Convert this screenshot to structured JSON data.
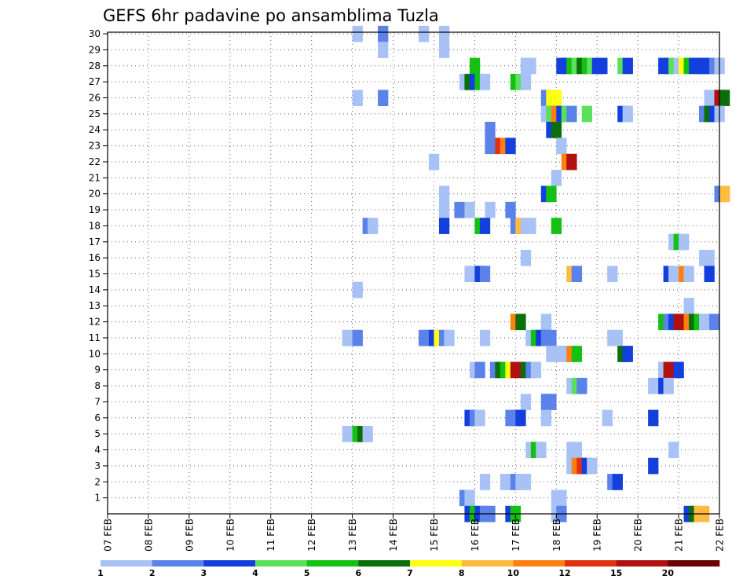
{
  "chart_data": {
    "type": "heatmap",
    "title": "GEFS 6hr padavine po ansamblima Tuzla",
    "x_tick_labels": [
      "07 FEB",
      "08 FEB",
      "09 FEB",
      "10 FEB",
      "11 FEB",
      "12 FEB",
      "13 FEB",
      "14 FEB",
      "15 FEB",
      "16 FEB",
      "17 FEB",
      "18 FEB",
      "19 FEB",
      "20 FEB",
      "21 FEB",
      "22 FEB"
    ],
    "y_tick_labels": [
      "1",
      "2",
      "3",
      "4",
      "5",
      "6",
      "7",
      "8",
      "9",
      "10",
      "11",
      "12",
      "13",
      "14",
      "15",
      "16",
      "17",
      "18",
      "19",
      "20",
      "21",
      "22",
      "23",
      "24",
      "25",
      "26",
      "27",
      "28",
      "29",
      "30"
    ],
    "x_range_days": [
      0,
      15
    ],
    "y_range": [
      0,
      30
    ],
    "time_step_hours": 6,
    "grid": true,
    "colorbar": {
      "placement": "bottom",
      "labels": [
        "1",
        "2",
        "3",
        "4",
        "5",
        "6",
        "7",
        "8",
        "10",
        "12",
        "15",
        "20"
      ],
      "colors": [
        "#a9c2f5",
        "#5b82e8",
        "#1340dc",
        "#5ae05a",
        "#13c013",
        "#0a6e0a",
        "#ffff10",
        "#ffbb40",
        "#ff8010",
        "#e03010",
        "#b01010",
        "#6a0000"
      ]
    },
    "cells": [
      [
        12,
        30,
        1
      ],
      [
        13.25,
        30,
        2
      ],
      [
        15.25,
        30,
        1
      ],
      [
        16.25,
        30,
        1
      ],
      [
        13.25,
        29,
        1
      ],
      [
        16.25,
        29,
        1
      ],
      [
        17.75,
        28,
        5
      ],
      [
        20.25,
        28,
        1
      ],
      [
        20.5,
        28,
        1
      ],
      [
        22,
        28,
        3
      ],
      [
        22.25,
        28,
        3
      ],
      [
        22.5,
        28,
        5
      ],
      [
        22.75,
        28,
        4
      ],
      [
        23,
        28,
        6
      ],
      [
        23.25,
        28,
        5
      ],
      [
        23.5,
        28,
        4
      ],
      [
        23.75,
        28,
        3
      ],
      [
        24,
        28,
        3
      ],
      [
        25,
        28,
        4
      ],
      [
        25.25,
        28,
        3
      ],
      [
        27,
        28,
        3
      ],
      [
        27.25,
        28,
        3
      ],
      [
        27.5,
        28,
        4
      ],
      [
        27.75,
        28,
        1
      ],
      [
        28,
        28,
        7
      ],
      [
        28.25,
        28,
        5
      ],
      [
        28.5,
        28,
        3
      ],
      [
        28.75,
        28,
        3
      ],
      [
        29,
        28,
        3
      ],
      [
        29.25,
        28,
        3
      ],
      [
        29.5,
        28,
        2
      ],
      [
        29.75,
        28,
        1
      ],
      [
        17.25,
        27,
        1
      ],
      [
        17.5,
        27,
        6
      ],
      [
        17.75,
        27,
        3
      ],
      [
        18,
        27,
        5
      ],
      [
        18.25,
        27,
        1
      ],
      [
        19.75,
        27,
        5
      ],
      [
        20,
        27,
        4
      ],
      [
        20.25,
        27,
        1
      ],
      [
        12,
        26,
        1
      ],
      [
        13.25,
        26,
        2
      ],
      [
        21.25,
        26,
        2
      ],
      [
        21.5,
        26,
        7
      ],
      [
        21.75,
        26,
        7
      ],
      [
        29.25,
        26,
        1
      ],
      [
        29.75,
        26,
        11
      ],
      [
        30,
        26,
        6
      ],
      [
        21.25,
        25,
        1
      ],
      [
        21.5,
        25,
        4
      ],
      [
        21.75,
        25,
        9
      ],
      [
        22,
        25,
        3
      ],
      [
        22.25,
        25,
        4
      ],
      [
        22.5,
        25,
        2
      ],
      [
        23.25,
        25,
        4
      ],
      [
        25,
        25,
        3
      ],
      [
        25.25,
        25,
        1
      ],
      [
        29,
        25,
        2
      ],
      [
        29.25,
        25,
        6
      ],
      [
        29.5,
        25,
        3
      ],
      [
        29.75,
        25,
        1
      ],
      [
        18.5,
        24,
        2
      ],
      [
        21.5,
        24,
        3
      ],
      [
        21.75,
        24,
        6
      ],
      [
        18.5,
        23,
        2
      ],
      [
        18.75,
        23,
        2
      ],
      [
        19,
        23,
        10
      ],
      [
        19.25,
        23,
        9
      ],
      [
        19.5,
        23,
        3
      ],
      [
        22,
        23,
        1
      ],
      [
        15.75,
        22,
        1
      ],
      [
        22.25,
        22,
        9
      ],
      [
        22.5,
        22,
        11
      ],
      [
        21.75,
        21,
        1
      ],
      [
        16.25,
        20,
        1
      ],
      [
        21.25,
        20,
        3
      ],
      [
        21.5,
        20,
        5
      ],
      [
        29.75,
        20,
        2
      ],
      [
        30,
        20,
        8
      ],
      [
        16.25,
        19,
        1
      ],
      [
        17,
        19,
        2
      ],
      [
        17.5,
        19,
        1
      ],
      [
        18.5,
        19,
        1
      ],
      [
        19.5,
        19,
        2
      ],
      [
        12.5,
        18,
        2
      ],
      [
        12.75,
        18,
        1
      ],
      [
        16.25,
        18,
        3
      ],
      [
        18,
        18,
        5
      ],
      [
        18.25,
        18,
        3
      ],
      [
        19.75,
        18,
        2
      ],
      [
        20,
        18,
        8
      ],
      [
        20.25,
        18,
        1
      ],
      [
        20.5,
        18,
        1
      ],
      [
        21.75,
        18,
        5
      ],
      [
        27.5,
        17,
        1
      ],
      [
        27.75,
        17,
        5
      ],
      [
        28,
        17,
        1
      ],
      [
        20.25,
        16,
        1
      ],
      [
        29,
        16,
        1
      ],
      [
        29.25,
        16,
        1
      ],
      [
        17.5,
        15,
        1
      ],
      [
        17.75,
        15,
        1
      ],
      [
        18,
        15,
        3
      ],
      [
        18.25,
        15,
        2
      ],
      [
        22.5,
        15,
        8
      ],
      [
        22.75,
        15,
        2
      ],
      [
        24.5,
        15,
        1
      ],
      [
        27.25,
        15,
        3
      ],
      [
        27.5,
        15,
        1
      ],
      [
        28,
        15,
        9
      ],
      [
        28.25,
        15,
        1
      ],
      [
        29.25,
        15,
        3
      ],
      [
        12,
        14,
        1
      ],
      [
        28.25,
        13,
        1
      ],
      [
        19.75,
        12,
        9
      ],
      [
        20,
        12,
        6
      ],
      [
        21.25,
        12,
        1
      ],
      [
        27,
        12,
        5
      ],
      [
        27.25,
        12,
        2
      ],
      [
        27.5,
        12,
        3
      ],
      [
        27.75,
        12,
        11
      ],
      [
        28,
        12,
        11
      ],
      [
        28.25,
        12,
        9
      ],
      [
        28.5,
        12,
        6
      ],
      [
        28.75,
        12,
        5
      ],
      [
        29,
        12,
        1
      ],
      [
        29.25,
        12,
        1
      ],
      [
        29.5,
        12,
        2
      ],
      [
        11.5,
        11,
        1
      ],
      [
        11.75,
        11,
        1
      ],
      [
        12,
        11,
        2
      ],
      [
        15.25,
        11,
        2
      ],
      [
        15.5,
        11,
        2
      ],
      [
        15.75,
        11,
        3
      ],
      [
        16,
        11,
        7
      ],
      [
        16.25,
        11,
        2
      ],
      [
        16.5,
        11,
        1
      ],
      [
        18.25,
        11,
        1
      ],
      [
        20.5,
        11,
        1
      ],
      [
        20.75,
        11,
        5
      ],
      [
        21,
        11,
        3
      ],
      [
        21.25,
        11,
        2
      ],
      [
        21.5,
        11,
        2
      ],
      [
        24.5,
        11,
        1
      ],
      [
        24.75,
        11,
        1
      ],
      [
        21.5,
        10,
        1
      ],
      [
        21.75,
        10,
        1
      ],
      [
        22,
        10,
        1
      ],
      [
        22.25,
        10,
        1
      ],
      [
        22.5,
        10,
        9
      ],
      [
        22.75,
        10,
        5
      ],
      [
        25,
        10,
        6
      ],
      [
        25.25,
        10,
        3
      ],
      [
        17.75,
        9,
        1
      ],
      [
        18,
        9,
        2
      ],
      [
        18.75,
        9,
        2
      ],
      [
        19,
        9,
        6
      ],
      [
        19.25,
        9,
        5
      ],
      [
        19.5,
        9,
        7
      ],
      [
        19.75,
        9,
        11
      ],
      [
        20,
        9,
        11
      ],
      [
        20.25,
        9,
        6
      ],
      [
        20.5,
        9,
        2
      ],
      [
        20.75,
        9,
        1
      ],
      [
        27,
        9,
        1
      ],
      [
        27.25,
        9,
        11
      ],
      [
        27.5,
        9,
        11
      ],
      [
        27.75,
        9,
        3
      ],
      [
        22.5,
        8,
        1
      ],
      [
        22.75,
        8,
        4
      ],
      [
        23,
        8,
        2
      ],
      [
        26.5,
        8,
        1
      ],
      [
        27,
        8,
        3
      ],
      [
        27.25,
        8,
        1
      ],
      [
        20.25,
        7,
        1
      ],
      [
        21.25,
        7,
        2
      ],
      [
        21.5,
        7,
        2
      ],
      [
        17.5,
        6,
        3
      ],
      [
        17.75,
        6,
        2
      ],
      [
        18,
        6,
        1
      ],
      [
        19.5,
        6,
        2
      ],
      [
        19.75,
        6,
        2
      ],
      [
        20,
        6,
        3
      ],
      [
        21.25,
        6,
        1
      ],
      [
        24.25,
        6,
        1
      ],
      [
        26.5,
        6,
        3
      ],
      [
        11.5,
        5,
        1
      ],
      [
        12,
        5,
        5
      ],
      [
        12.25,
        5,
        6
      ],
      [
        12.5,
        5,
        1
      ],
      [
        20.5,
        4,
        1
      ],
      [
        20.75,
        4,
        5
      ],
      [
        21,
        4,
        1
      ],
      [
        22.5,
        4,
        1
      ],
      [
        22.75,
        4,
        1
      ],
      [
        27.5,
        4,
        1
      ],
      [
        22.5,
        3,
        1
      ],
      [
        22.75,
        3,
        9
      ],
      [
        23,
        3,
        10
      ],
      [
        23.25,
        3,
        3
      ],
      [
        23.5,
        3,
        1
      ],
      [
        26.5,
        3,
        3
      ],
      [
        18.25,
        2,
        1
      ],
      [
        19.25,
        2,
        1
      ],
      [
        19.5,
        2,
        1
      ],
      [
        19.75,
        2,
        2
      ],
      [
        20,
        2,
        1
      ],
      [
        20.25,
        2,
        1
      ],
      [
        24.5,
        2,
        2
      ],
      [
        24.75,
        2,
        3
      ],
      [
        17.25,
        1,
        2
      ],
      [
        17.5,
        1,
        1
      ],
      [
        21.75,
        1,
        1
      ],
      [
        22,
        1,
        1
      ],
      [
        17.5,
        0,
        3
      ],
      [
        17.75,
        0,
        5
      ],
      [
        18,
        0,
        3
      ],
      [
        18.25,
        0,
        2
      ],
      [
        18.5,
        0,
        2
      ],
      [
        19.5,
        0,
        3
      ],
      [
        19.75,
        0,
        5
      ],
      [
        21.75,
        0,
        1
      ],
      [
        22,
        0,
        2
      ],
      [
        28.25,
        0,
        3
      ],
      [
        28.5,
        0,
        6
      ],
      [
        28.75,
        0,
        8
      ],
      [
        29,
        0,
        8
      ]
    ]
  }
}
